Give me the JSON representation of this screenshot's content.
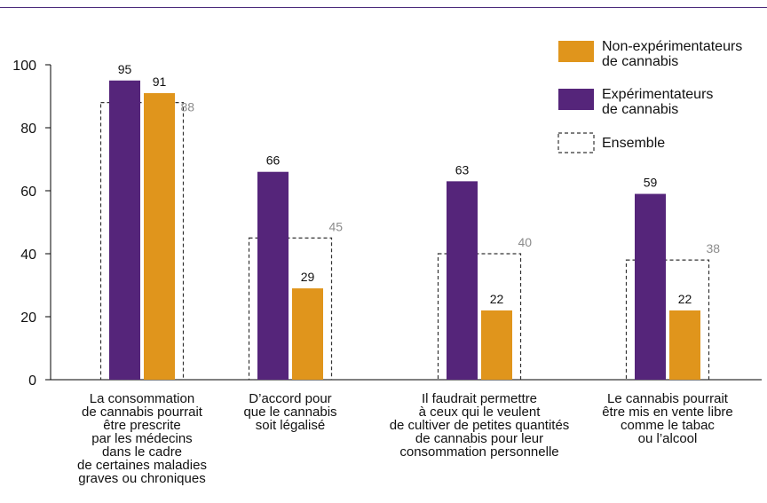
{
  "colors": {
    "non_experimenters": "#E0951C",
    "experimenters": "#55257A",
    "ensemble": "#333333",
    "total_label": "#8C8C8C",
    "rule": "#4A2A7A"
  },
  "chart_data": {
    "type": "bar",
    "categories": [
      [
        "La consommation",
        "de cannabis pourrait",
        "être prescrite",
        "par les médecins",
        "dans le cadre",
        "de certaines maladies",
        "graves ou chroniques"
      ],
      [
        "D’accord pour",
        "que le cannabis",
        "soit légalisé"
      ],
      [
        "Il faudrait permettre",
        "à ceux qui le veulent",
        "de cultiver de petites quantités",
        "de cannabis pour leur",
        "consommation personnelle"
      ],
      [
        "Le cannabis pourrait",
        "être mis en vente libre",
        "comme le tabac",
        "ou l’alcool"
      ]
    ],
    "series": [
      {
        "name": [
          "Expérimentateurs",
          "de cannabis"
        ],
        "values": [
          95,
          66,
          63,
          59
        ]
      },
      {
        "name": [
          "Non-expérimentateurs",
          "de cannabis"
        ],
        "values": [
          91,
          29,
          22,
          22
        ]
      }
    ],
    "ensemble": {
      "name": "Ensemble",
      "values": [
        88,
        45,
        40,
        38
      ]
    },
    "yticks": [
      0,
      20,
      40,
      60,
      80,
      100
    ],
    "ylim": [
      0,
      100
    ],
    "legend_position": "top-right",
    "grid": false
  }
}
